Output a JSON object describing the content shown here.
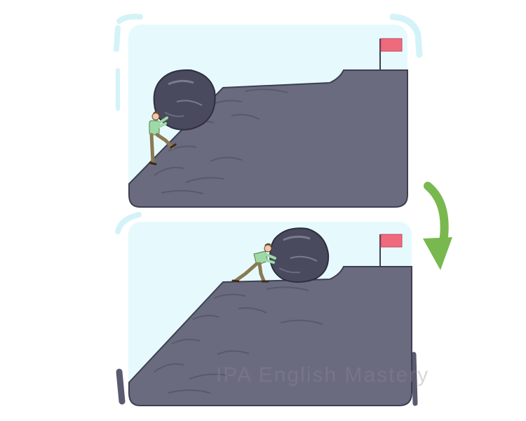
{
  "illustration": {
    "colors": {
      "sky": "#e6fafd",
      "rock": "#6b6b80",
      "rock_dark": "#3f3f52",
      "boulder": "#4a4a5e",
      "flag": "#f06a7e",
      "arrow": "#79b84f",
      "shirt": "#9fd9a6",
      "pants": "#8a7a52"
    },
    "icons": [
      "boulder-icon",
      "person-icon",
      "flag-icon",
      "arrow-down-icon"
    ]
  },
  "watermark": {
    "text": "IPA English Mastery"
  }
}
